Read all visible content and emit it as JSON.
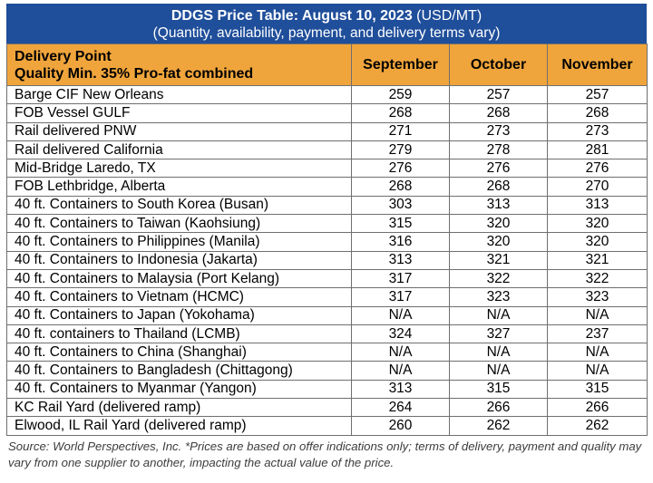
{
  "title": {
    "bold": "DDGS Price Table: August 10, 2023",
    "unit": " (USD/MT)",
    "subtitle": "(Quantity, availability, payment, and delivery terms vary)"
  },
  "header": {
    "line1": "Delivery Point",
    "line2": "Quality Min. 35% Pro-fat combined",
    "months": [
      "September",
      "October",
      "November"
    ]
  },
  "rows": [
    {
      "point": "Barge CIF New Orleans",
      "sep": "259",
      "oct": "257",
      "nov": "257"
    },
    {
      "point": "FOB Vessel GULF",
      "sep": "268",
      "oct": "268",
      "nov": "268"
    },
    {
      "point": "Rail delivered PNW",
      "sep": "271",
      "oct": "273",
      "nov": "273"
    },
    {
      "point": "Rail delivered California",
      "sep": "279",
      "oct": "278",
      "nov": "281"
    },
    {
      "point": "Mid-Bridge Laredo, TX",
      "sep": "276",
      "oct": "276",
      "nov": "276"
    },
    {
      "point": "FOB Lethbridge, Alberta",
      "sep": "268",
      "oct": "268",
      "nov": "270"
    },
    {
      "point": "40 ft. Containers to South Korea (Busan)",
      "sep": "303",
      "oct": "313",
      "nov": "313"
    },
    {
      "point": "40 ft. Containers to Taiwan (Kaohsiung)",
      "sep": "315",
      "oct": "320",
      "nov": "320"
    },
    {
      "point": "40 ft. Containers to Philippines (Manila)",
      "sep": "316",
      "oct": "320",
      "nov": "320"
    },
    {
      "point": "40 ft. Containers to Indonesia (Jakarta)",
      "sep": "313",
      "oct": "321",
      "nov": "321"
    },
    {
      "point": "40 ft. Containers to Malaysia (Port Kelang)",
      "sep": "317",
      "oct": "322",
      "nov": "322"
    },
    {
      "point": "40 ft. Containers to Vietnam (HCMC)",
      "sep": "317",
      "oct": "323",
      "nov": "323"
    },
    {
      "point": "40 ft. Containers to Japan (Yokohama)",
      "sep": "N/A",
      "oct": "N/A",
      "nov": "N/A"
    },
    {
      "point": "40 ft. containers to Thailand (LCMB)",
      "sep": "324",
      "oct": "327",
      "nov": "237"
    },
    {
      "point": "40 ft. Containers to China (Shanghai)",
      "sep": "N/A",
      "oct": "N/A",
      "nov": "N/A"
    },
    {
      "point": "40 ft. Containers to Bangladesh (Chittagong)",
      "sep": "N/A",
      "oct": "N/A",
      "nov": "N/A"
    },
    {
      "point": "40 ft. Containers to Myanmar (Yangon)",
      "sep": "313",
      "oct": "315",
      "nov": "315"
    },
    {
      "point": "KC Rail Yard (delivered ramp)",
      "sep": "264",
      "oct": "266",
      "nov": "266"
    },
    {
      "point": "Elwood, IL Rail Yard (delivered ramp)",
      "sep": "260",
      "oct": "262",
      "nov": "262"
    }
  ],
  "source": "Source: World Perspectives, Inc. *Prices are based on offer indications only; terms of delivery, payment and quality may vary from one supplier to another, impacting the actual value of the price.",
  "colors": {
    "title_bg": "#1f4e9a",
    "header_bg": "#f0a53c",
    "grid": "#6f6f6f"
  }
}
